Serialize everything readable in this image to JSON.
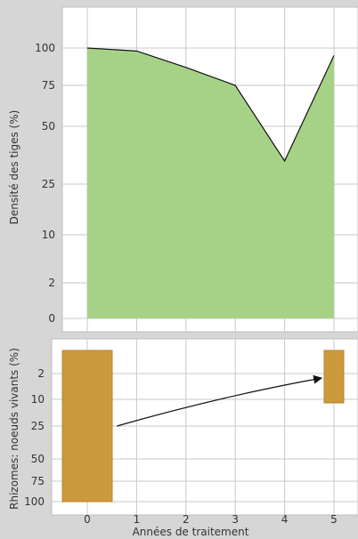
{
  "chart_data": [
    {
      "type": "area",
      "ylabel": "Densité des tiges (%)",
      "x": [
        0,
        1,
        2,
        3,
        4,
        5
      ],
      "series": [
        {
          "values": [
            100,
            98,
            87,
            75,
            35,
            95
          ],
          "color": "#a6d288"
        }
      ],
      "xlim": [
        -0.5,
        5.5
      ],
      "yticks": [
        0,
        2,
        10,
        25,
        50,
        75,
        100
      ],
      "yscale": "nonlinear (tick labels unevenly spaced)",
      "grid": true
    },
    {
      "type": "bar",
      "ylabel": "Rhizomes: noeuds vivants (%)",
      "xlabel": "Années de traitement",
      "xticks": [
        "0",
        "1",
        "2",
        "3",
        "4",
        "5"
      ],
      "xlim": [
        -0.5,
        5.5
      ],
      "yticks": [
        2,
        10,
        25,
        50,
        75,
        100
      ],
      "yscale": "nonlinear, inverted (2 at top, 100 at bottom)",
      "bars": [
        {
          "x": 0,
          "from": 0,
          "to": 100,
          "color": "#cc9a3e"
        },
        {
          "x": 5,
          "from": 0,
          "to": 12,
          "color": "#cc9a3e"
        }
      ],
      "annotations": [
        {
          "type": "arrow",
          "from_x": 0.6,
          "to_x": 4.75,
          "meaning": "decline from year 0 to year 5"
        }
      ],
      "grid": true
    }
  ]
}
